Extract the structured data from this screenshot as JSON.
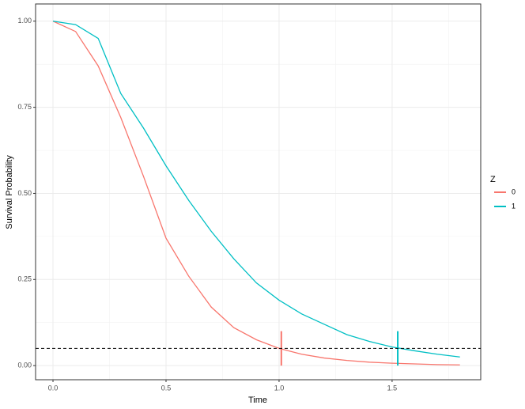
{
  "chart_data": {
    "type": "line",
    "xlabel": "Time",
    "ylabel": "Survival Probability",
    "x": [
      0,
      0.1,
      0.2,
      0.3,
      0.4,
      0.5,
      0.6,
      0.7,
      0.8,
      0.9,
      1.0,
      1.1,
      1.2,
      1.3,
      1.4,
      1.5,
      1.6,
      1.7,
      1.8
    ],
    "series": [
      {
        "name": "0",
        "color": "#f8766d",
        "values": [
          1,
          0.97,
          0.87,
          0.72,
          0.55,
          0.37,
          0.26,
          0.17,
          0.11,
          0.075,
          0.05,
          0.033,
          0.022,
          0.015,
          0.01,
          0.007,
          0.005,
          0.003,
          0.002
        ],
        "marker_x": 1.01
      },
      {
        "name": "1",
        "color": "#00bfc4",
        "values": [
          1,
          0.99,
          0.95,
          0.79,
          0.69,
          0.58,
          0.48,
          0.39,
          0.31,
          0.24,
          0.19,
          0.15,
          0.12,
          0.09,
          0.07,
          0.054,
          0.043,
          0.033,
          0.025
        ],
        "marker_x": 1.525
      }
    ],
    "marker_ylim": [
      0,
      0.1
    ],
    "hline": 0.05,
    "legend_title": "Z",
    "legend": "right",
    "grid": true,
    "xlim": [
      -0.077,
      1.892
    ],
    "ylim": [
      -0.041,
      1.05
    ],
    "xticks": [
      {
        "value": 0,
        "label": "0.0"
      },
      {
        "value": 0.5,
        "label": "0.5"
      },
      {
        "value": 1,
        "label": "1.0"
      },
      {
        "value": 1.5,
        "label": "1.5"
      }
    ],
    "yticks": [
      {
        "value": 0,
        "label": "0.00"
      },
      {
        "value": 0.25,
        "label": "0.25"
      },
      {
        "value": 0.5,
        "label": "0.50"
      },
      {
        "value": 0.75,
        "label": "0.75"
      },
      {
        "value": 1,
        "label": "1.00"
      }
    ]
  }
}
